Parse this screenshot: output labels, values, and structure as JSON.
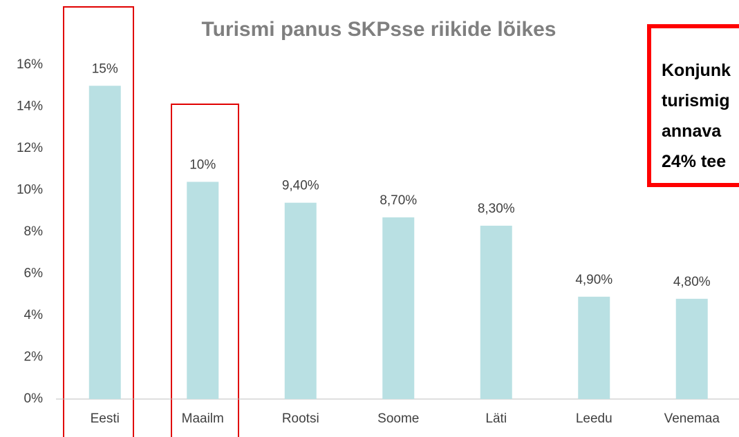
{
  "chart_data": {
    "type": "bar",
    "title": "Turismi panus SKPsse riikide lõikes",
    "categories": [
      "Eesti",
      "Maailm",
      "Rootsi",
      "Soome",
      "Läti",
      "Leedu",
      "Venemaa"
    ],
    "values": [
      15,
      10.4,
      9.4,
      8.7,
      8.3,
      4.9,
      4.8
    ],
    "value_labels": [
      "15%",
      "10%",
      "9,40%",
      "8,70%",
      "8,30%",
      "4,90%",
      "4,80%"
    ],
    "color": "#b9e0e3",
    "ylim": [
      0,
      16
    ],
    "yticks": [
      {
        "value": 0,
        "label": "0%"
      },
      {
        "value": 2,
        "label": "2%"
      },
      {
        "value": 4,
        "label": "4%"
      },
      {
        "value": 6,
        "label": "6%"
      },
      {
        "value": 8,
        "label": "8%"
      },
      {
        "value": 10,
        "label": "10%"
      },
      {
        "value": 12,
        "label": "12%"
      },
      {
        "value": 14,
        "label": "14%"
      },
      {
        "value": 16,
        "label": "16%"
      }
    ],
    "grid": false,
    "annotation": [
      "Konjunk",
      "turismig",
      "annava",
      "24% tee"
    ]
  }
}
